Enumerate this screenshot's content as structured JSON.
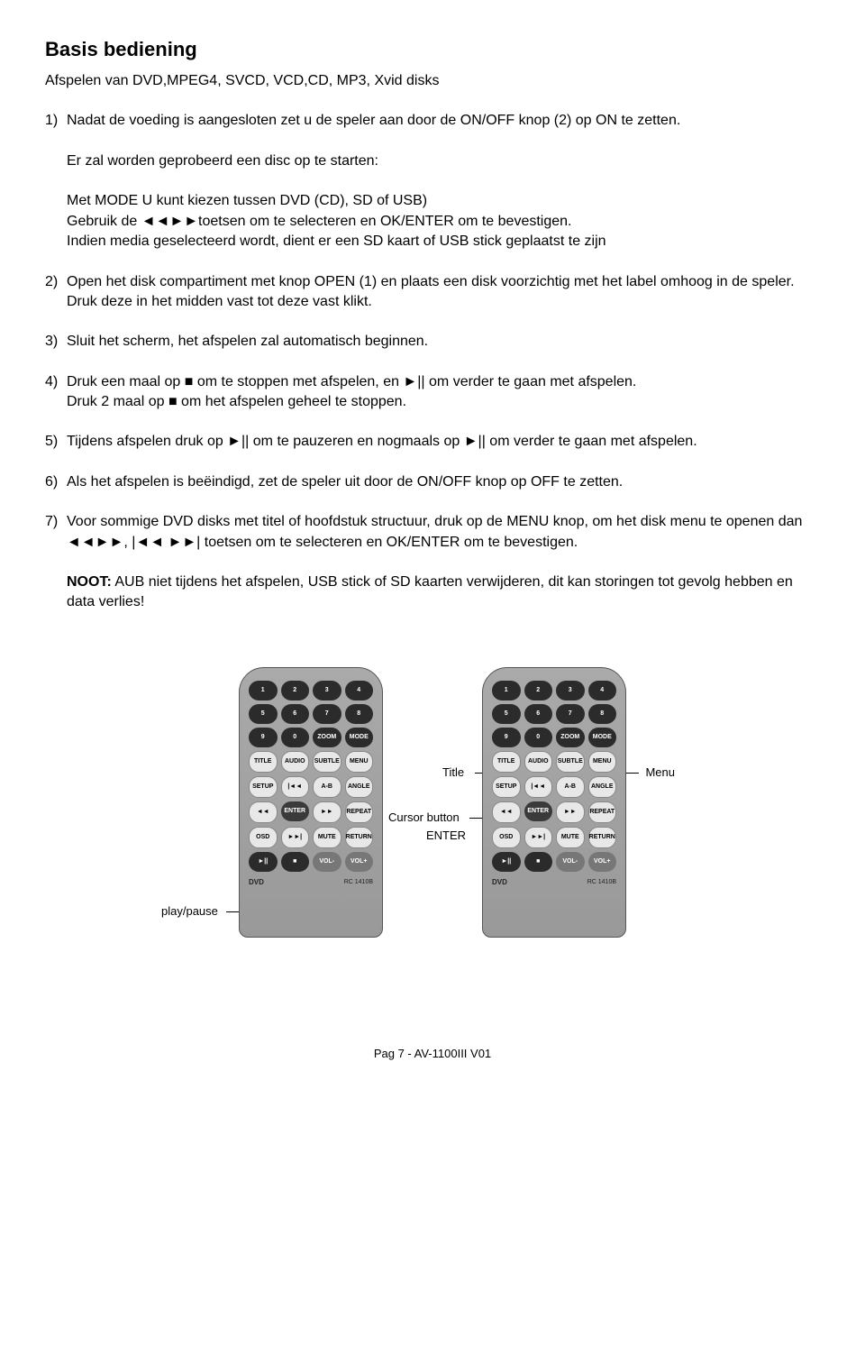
{
  "title": "Basis bediening",
  "subtitle": "Afspelen van DVD,MPEG4, SVCD, VCD,CD, MP3, Xvid disks",
  "item1_line1": "Nadat de voeding is aangesloten zet u de speler aan door de ON/OFF knop (2) op ON te zetten.",
  "block1_line1": "Er zal worden geprobeerd een disc op te starten:",
  "block1_line2": "Met MODE U kunt kiezen tussen DVD (CD), SD of USB)",
  "block1_line3": "Gebruik de ◄◄►►toetsen om te selecteren en OK/ENTER om te bevestigen.",
  "block1_line4": "Indien media geselecteerd wordt, dient er een SD kaart of USB stick geplaatst te zijn",
  "item2": "Open het disk compartiment met knop OPEN (1) en plaats een disk voorzichtig met het label omhoog in de speler. Druk deze in het midden vast tot deze vast klikt.",
  "item3": "Sluit het scherm, het afspelen zal automatisch beginnen.",
  "item4_line1": "Druk een maal op ■ om te stoppen met afspelen, en ►|| om verder te gaan met afspelen.",
  "item4_line2": "Druk 2 maal op ■ om het afspelen geheel te stoppen.",
  "item5": "Tijdens afspelen druk op ►|| om te pauzeren en nogmaals op ►|| om verder te gaan met afspelen.",
  "item6": "Als het afspelen is beëindigd, zet de speler uit door de ON/OFF knop op OFF te zetten.",
  "item7": "Voor sommige DVD disks met titel of hoofdstuk structuur, druk op de MENU knop, om het disk menu te openen dan ◄◄►►, |◄◄ ►►| toetsen om te selecteren en OK/ENTER om te bevestigen.",
  "noot_label": "NOOT:",
  "noot_text": " AUB niet tijdens het afspelen, USB stick of SD kaarten verwijderen, dit kan storingen tot gevolg hebben en data verlies!",
  "callouts": {
    "play_pause": "play/pause",
    "title": "Title",
    "cursor": "Cursor button",
    "enter": "ENTER",
    "menu": "Menu"
  },
  "remote": {
    "row1": [
      "1",
      "2",
      "3",
      "4"
    ],
    "row2": [
      "5",
      "6",
      "7",
      "8"
    ],
    "row3": [
      "9",
      "0",
      "ZOOM",
      "MODE"
    ],
    "row4": [
      "TITLE",
      "AUDIO",
      "SUBTLE",
      "MENU"
    ],
    "row5": [
      "SETUP",
      "|◄◄",
      "A-B",
      "ANGLE"
    ],
    "row6": [
      "◄◄",
      "ENTER",
      "►►",
      "REPEAT"
    ],
    "row7": [
      "OSD",
      "►►|",
      "MUTE",
      "RETURN"
    ],
    "row8": [
      "►||",
      "■",
      "VOL-",
      "VOL+"
    ],
    "foot_left": "DVD",
    "foot_right": "RC 1410B"
  },
  "footer": "Pag 7 - AV-1100III V01"
}
